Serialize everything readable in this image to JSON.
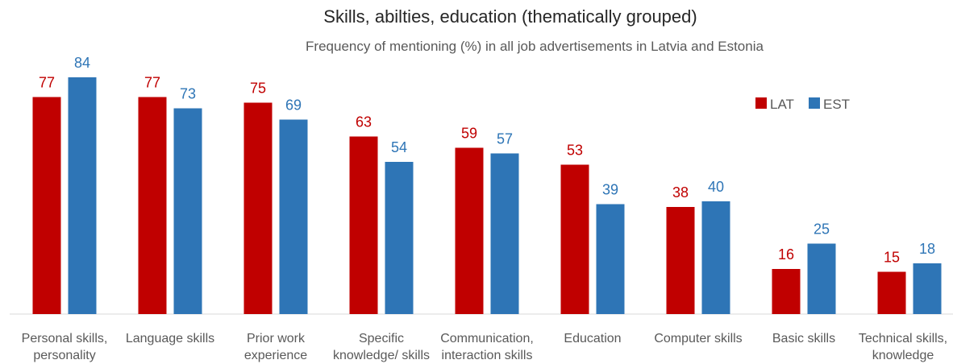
{
  "chart_data": {
    "type": "bar",
    "title": "Skills, abilties, education (thematically grouped)",
    "subtitle": "Frequency of mentioning (%) in all job advertisements in Latvia and Estonia",
    "categories": [
      [
        "Personal skills,",
        "personality"
      ],
      [
        "Language skills"
      ],
      [
        "Prior work",
        "experience"
      ],
      [
        "Specific",
        "knowledge/ skills"
      ],
      [
        "Communication,",
        "interaction skills"
      ],
      [
        "Education"
      ],
      [
        "Computer skills"
      ],
      [
        "Basic skills"
      ],
      [
        "Technical skills,",
        "knowledge"
      ]
    ],
    "series": [
      {
        "name": "LAT",
        "color": "#C00000",
        "values": [
          77,
          77,
          75,
          63,
          59,
          53,
          38,
          16,
          15
        ]
      },
      {
        "name": "EST",
        "color": "#2E75B6",
        "values": [
          84,
          73,
          69,
          54,
          57,
          39,
          40,
          25,
          18
        ]
      }
    ],
    "ylim": [
      0,
      100
    ],
    "grid": false,
    "legend_position": "top-right",
    "xlabel": "",
    "ylabel": ""
  }
}
